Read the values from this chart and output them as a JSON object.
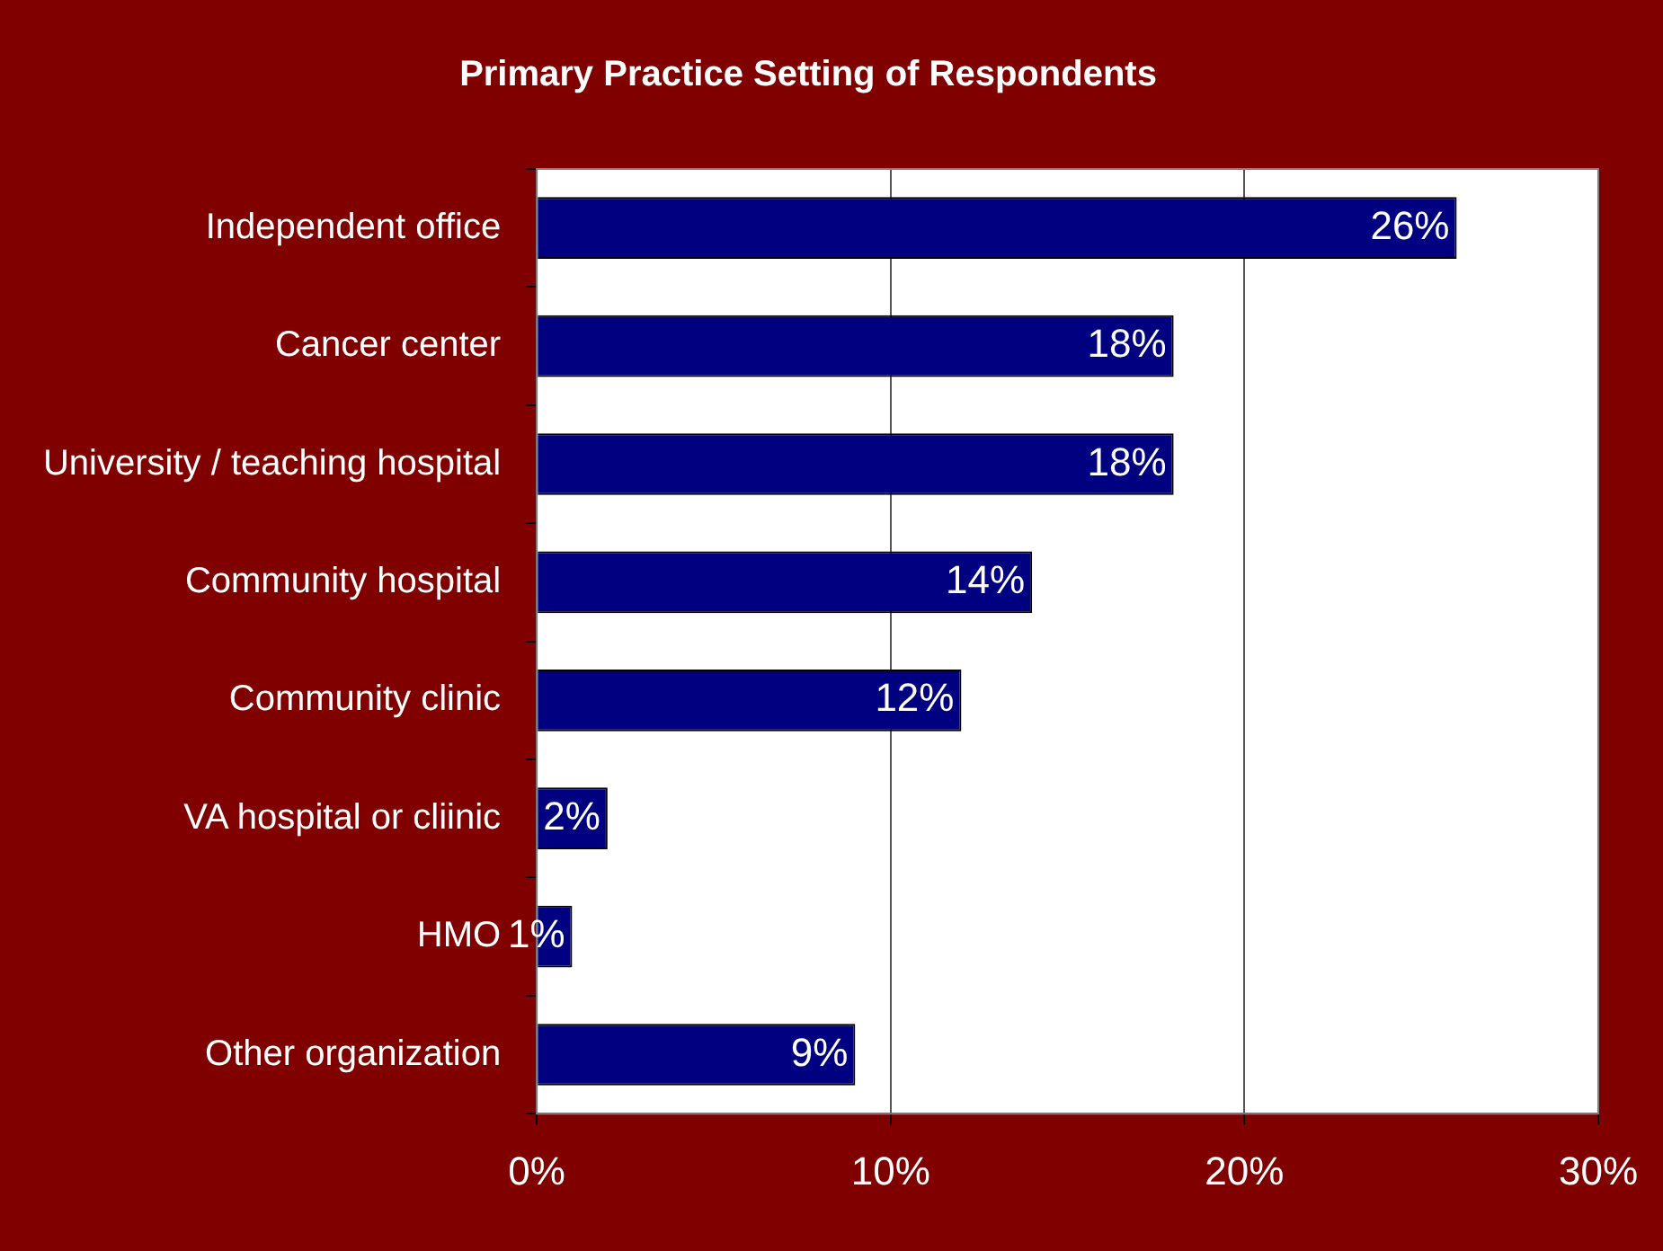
{
  "chart_data": {
    "type": "bar",
    "orientation": "horizontal",
    "title": "Primary Practice Setting of Respondents",
    "categories": [
      "Independent office",
      "Cancer center",
      "University / teaching hospital",
      "Community hospital",
      "Community clinic",
      "VA hospital or cliinic",
      "HMO",
      "Other organization"
    ],
    "values": [
      26,
      18,
      18,
      14,
      12,
      2,
      1,
      9
    ],
    "value_labels": [
      "26%",
      "18%",
      "18%",
      "14%",
      "12%",
      "2%",
      "1%",
      "9%"
    ],
    "color": "#000080",
    "xlim": [
      0,
      30
    ],
    "xticks": [
      {
        "value": 0,
        "label": "0%"
      },
      {
        "value": 10,
        "label": "10%"
      },
      {
        "value": 20,
        "label": "20%"
      },
      {
        "value": 30,
        "label": "30%"
      }
    ],
    "grid": "x",
    "legend": false
  }
}
